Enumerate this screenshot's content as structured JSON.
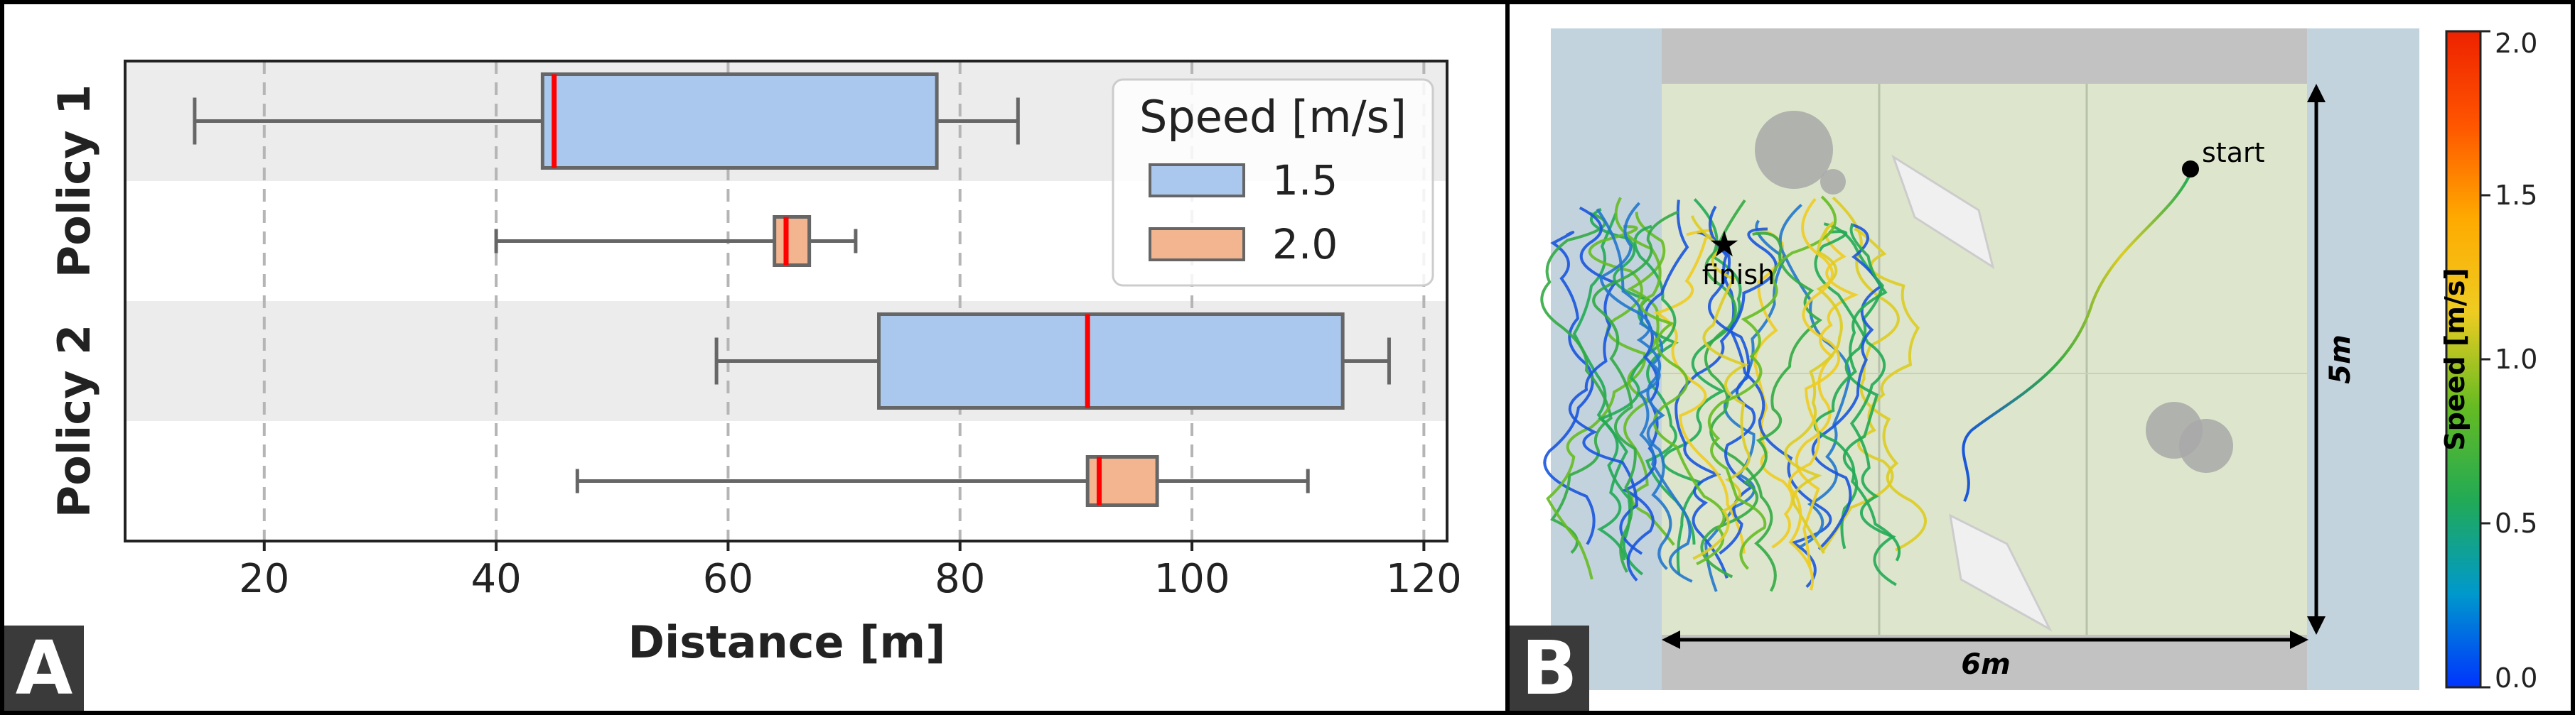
{
  "panel_a": {
    "letter": "A",
    "chart_data": {
      "type": "box",
      "orientation": "horizontal",
      "xlabel": "Distance [m]",
      "ylabel": "",
      "xlim": [
        8,
        122
      ],
      "xticks": [
        20,
        40,
        60,
        80,
        100,
        120
      ],
      "grid": "vertical-dashed",
      "legend": {
        "title": "Speed [m/s]",
        "position": "top-right",
        "entries": [
          {
            "label": "1.5",
            "color": "#aac8ee"
          },
          {
            "label": "2.0",
            "color": "#f2b590"
          }
        ]
      },
      "median_color": "#ff0000",
      "groups": [
        {
          "label": "Policy 1",
          "boxes": [
            {
              "speed": "1.5",
              "whisker_low": 14,
              "q1": 44,
              "median": 45,
              "q3": 78,
              "whisker_high": 85
            },
            {
              "speed": "2.0",
              "whisker_low": 40,
              "q1": 64,
              "median": 65,
              "q3": 67,
              "whisker_high": 71
            }
          ]
        },
        {
          "label": "Policy 2",
          "boxes": [
            {
              "speed": "1.5",
              "whisker_low": 59,
              "q1": 73,
              "median": 91,
              "q3": 113,
              "whisker_high": 117
            },
            {
              "speed": "2.0",
              "whisker_low": 47,
              "q1": 91,
              "median": 92,
              "q3": 97,
              "whisker_high": 110
            }
          ]
        }
      ]
    }
  },
  "panel_b": {
    "letter": "B",
    "start_label": "start",
    "finish_label": "finish",
    "width_label": "6m",
    "height_label": "5m",
    "colorbar": {
      "label": "Speed [m/s]",
      "min": 0.0,
      "max": 2.0,
      "ticks": [
        "0.0",
        "0.5",
        "1.0",
        "1.5",
        "2.0"
      ],
      "colormap": [
        "#0033ff",
        "#0099cc",
        "#22aa55",
        "#66bb22",
        "#eecc22",
        "#ffaa00",
        "#ff5500",
        "#ee2200"
      ]
    }
  }
}
